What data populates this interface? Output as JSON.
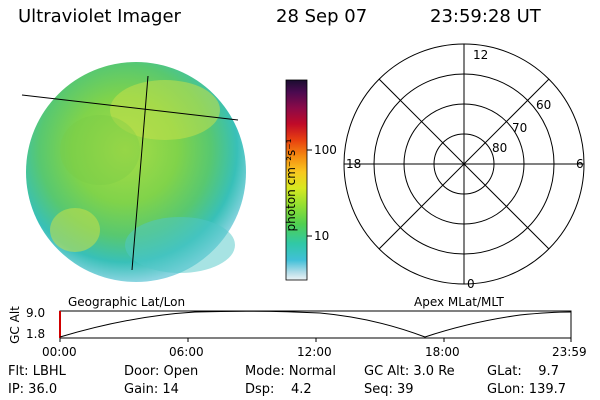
{
  "header": {
    "title": "Ultraviolet Imager",
    "date": "28 Sep 07",
    "time": "23:59:28 UT"
  },
  "colorbar": {
    "label": "photon cm⁻²s⁻¹",
    "ticks": [
      "100",
      "10"
    ],
    "colors": [
      "#2a1040",
      "#5a0a50",
      "#8b0a3c",
      "#c00020",
      "#e84010",
      "#f58a10",
      "#f8c820",
      "#e0e820",
      "#a8e030",
      "#60d040",
      "#30c890",
      "#30c0d0",
      "#a8d8e8",
      "#e8f0f4"
    ]
  },
  "geo": {
    "label": "Geographic Lat/Lon"
  },
  "polar": {
    "label": "Apex MLat/MLT",
    "mlt": {
      "top": "12",
      "left": "18",
      "right": "6",
      "bottom": "0"
    },
    "lat": [
      "60",
      "70",
      "80"
    ]
  },
  "alt_plot": {
    "ylabel": "GC Alt",
    "yticks": [
      "9.0",
      "1.8"
    ],
    "xticks": [
      "00:00",
      "06:00",
      "12:00",
      "18:00",
      "23:59"
    ]
  },
  "info": {
    "flt": "Flt: LBHL",
    "ip": "IP: 36.0",
    "door": "Door: Open",
    "gain": "Gain: 14",
    "mode": "Mode: Normal",
    "dsp": "Dsp:    4.2",
    "gcalt": "GC Alt: 3.0 Re",
    "seq": "Seq: 39",
    "glat": "GLat:    9.7",
    "glon": "GLon: 139.7"
  }
}
